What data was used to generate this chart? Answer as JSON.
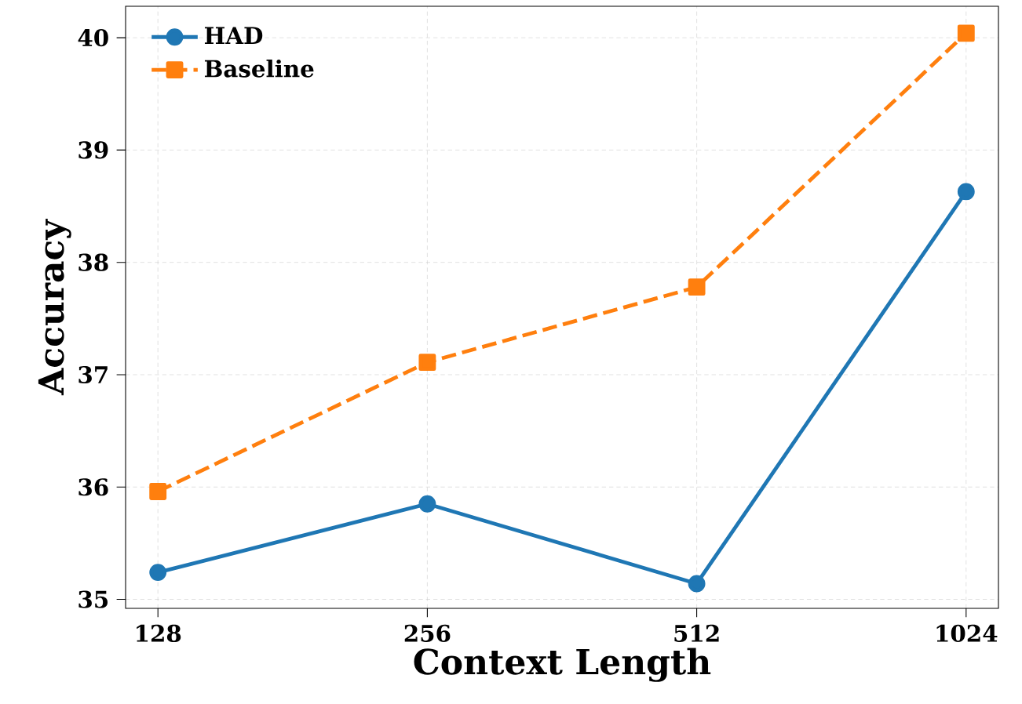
{
  "chart_data": {
    "type": "line",
    "xlabel": "Context Length",
    "ylabel": "Accuracy",
    "categories": [
      "128",
      "256",
      "512",
      "1024"
    ],
    "series": [
      {
        "name": "HAD",
        "color": "#1f77b4",
        "marker": "circle",
        "line_style": "solid",
        "values": [
          35.24,
          35.85,
          35.14,
          38.63
        ]
      },
      {
        "name": "Baseline",
        "color": "#ff7f0e",
        "marker": "square",
        "line_style": "dashed",
        "values": [
          35.96,
          37.11,
          37.78,
          40.04
        ]
      }
    ],
    "ylim": [
      34.92,
      40.28
    ],
    "yticks": [
      35,
      36,
      37,
      38,
      39,
      40
    ],
    "grid": true,
    "legend": "top left"
  }
}
